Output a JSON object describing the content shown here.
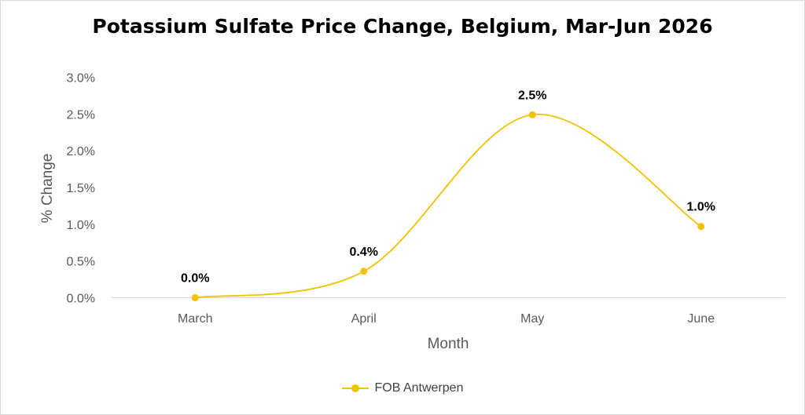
{
  "chart_data": {
    "type": "line",
    "title": "Potassium Sulfate Price Change, Belgium, Mar-Jun 2026",
    "xlabel": "Month",
    "ylabel": "% Change",
    "categories": [
      "March",
      "April",
      "May",
      "June"
    ],
    "series": [
      {
        "name": "FOB Antwerpen",
        "values": [
          0.0,
          0.36,
          2.49,
          0.97
        ],
        "data_labels": [
          "0.0%",
          "0.4%",
          "2.5%",
          "1.0%"
        ],
        "color": "#f2c200"
      }
    ],
    "ylim": [
      0,
      3.0
    ],
    "yticks": [
      "0.0%",
      "0.5%",
      "1.0%",
      "1.5%",
      "2.0%",
      "2.5%",
      "3.0%"
    ],
    "grid": false,
    "smooth": true,
    "legend_position": "bottom"
  }
}
